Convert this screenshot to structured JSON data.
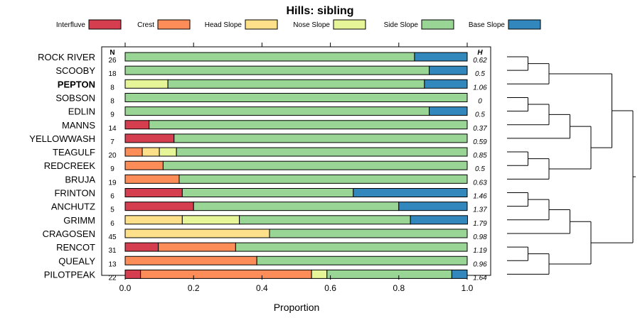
{
  "chart_data": {
    "type": "bar",
    "orientation": "horizontal",
    "stacked": true,
    "title": "Hills: sibling",
    "xlabel": "Proportion",
    "ylabel": "",
    "xlim": [
      0,
      1
    ],
    "xticks": [
      "0.0",
      "0.2",
      "0.4",
      "0.6",
      "0.8",
      "1.0"
    ],
    "n_header": "N",
    "h_header": "H",
    "legend_position": "top",
    "legend": [
      {
        "name": "Interfluve",
        "color": "#d53e4f"
      },
      {
        "name": "Crest",
        "color": "#fc8d59"
      },
      {
        "name": "Head Slope",
        "color": "#fee08b"
      },
      {
        "name": "Nose Slope",
        "color": "#e6f598"
      },
      {
        "name": "Side Slope",
        "color": "#99d594"
      },
      {
        "name": "Base Slope",
        "color": "#3288bd"
      }
    ],
    "categories": [
      "ROCK RIVER",
      "SCOOBY",
      "PEPTON",
      "SOBSON",
      "EDLIN",
      "MANNS",
      "YELLOWWASH",
      "TEAGULF",
      "REDCREEK",
      "BRUJA",
      "FRINTON",
      "ANCHUTZ",
      "GRIMM",
      "CRAGOSEN",
      "RENCOT",
      "QUEALY",
      "PILOTPEAK"
    ],
    "highlighted": "PEPTON",
    "n": [
      "26",
      "18",
      "8",
      "8",
      "9",
      "14",
      "7",
      "20",
      "9",
      "19",
      "6",
      "5",
      "6",
      "45",
      "31",
      "13",
      "22"
    ],
    "h": [
      "0.62",
      "0.5",
      "1.06",
      "0",
      "0.5",
      "0.37",
      "0.59",
      "0.85",
      "0.5",
      "0.63",
      "1.46",
      "1.37",
      "1.79",
      "0.98",
      "1.19",
      "0.96",
      "1.64"
    ],
    "series": [
      {
        "name": "Interfluve",
        "values": [
          0,
          0,
          0,
          0,
          0,
          0.07,
          0.143,
          0,
          0,
          0,
          0.167,
          0.2,
          0,
          0,
          0.097,
          0,
          0.045
        ]
      },
      {
        "name": "Crest",
        "values": [
          0,
          0,
          0,
          0,
          0,
          0,
          0,
          0.05,
          0.111,
          0.158,
          0,
          0,
          0,
          0,
          0.226,
          0.385,
          0.5
        ]
      },
      {
        "name": "Head Slope",
        "values": [
          0,
          0,
          0,
          0,
          0,
          0,
          0,
          0.05,
          0,
          0,
          0,
          0,
          0.167,
          0.422,
          0,
          0,
          0
        ]
      },
      {
        "name": "Nose Slope",
        "values": [
          0,
          0,
          0.125,
          0,
          0,
          0,
          0,
          0.05,
          0,
          0,
          0,
          0,
          0.167,
          0,
          0,
          0,
          0.045
        ]
      },
      {
        "name": "Side Slope",
        "values": [
          0.846,
          0.889,
          0.75,
          1.0,
          0.889,
          0.93,
          0.857,
          0.85,
          0.889,
          0.842,
          0.5,
          0.6,
          0.5,
          0.578,
          0.677,
          0.615,
          0.365
        ]
      },
      {
        "name": "Base Slope",
        "values": [
          0.154,
          0.111,
          0.125,
          0,
          0.111,
          0,
          0,
          0,
          0,
          0,
          0.333,
          0.2,
          0.167,
          0,
          0,
          0,
          0.045
        ]
      }
    ],
    "dendrogram": "((((ROCK RIVER,SCOOBY),PEPTON),((((SOBSON,EDLIN),MANNS),YELLOWWASH),((TEAGULF,REDCREEK),BRUJA))),((((FRINTON,ANCHUTZ),GRIMM),CRAGOSEN),((RENCOT,QUEALY),PILOTPEAK)))"
  }
}
